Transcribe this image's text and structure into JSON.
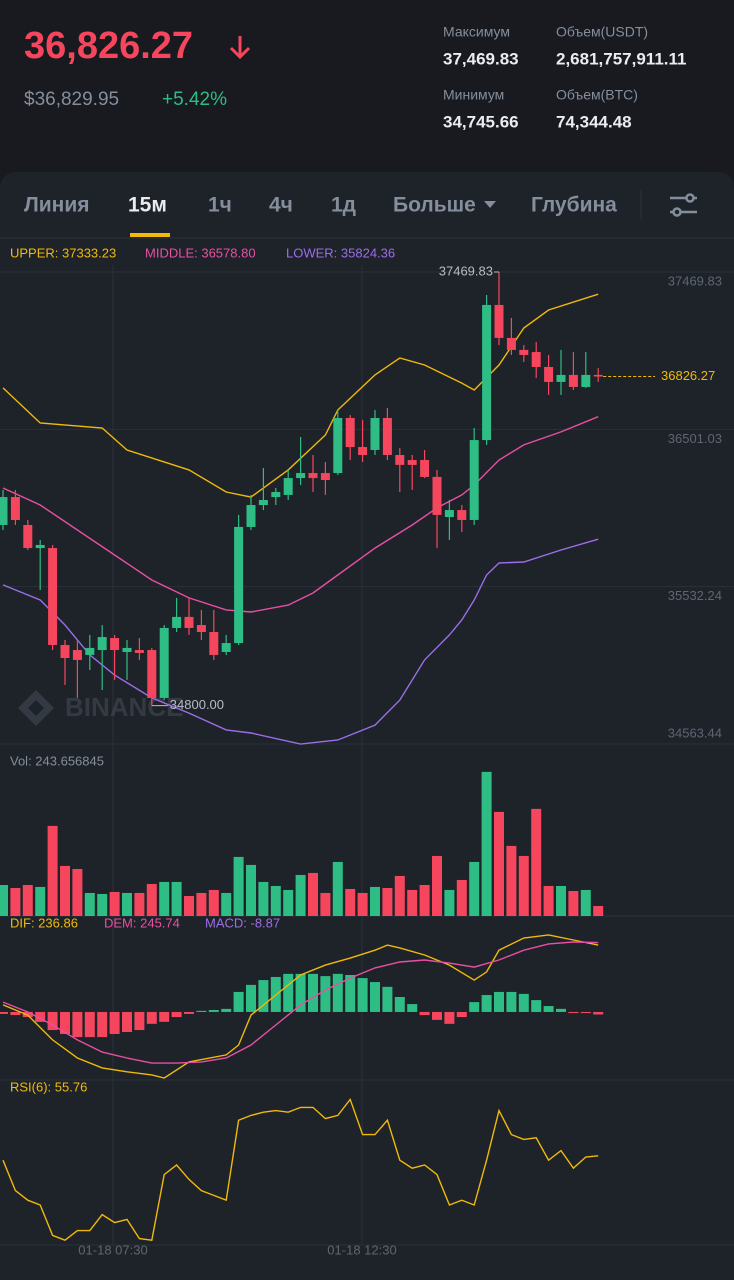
{
  "header": {
    "price": "36,826.27",
    "price_usd": "$36,829.95",
    "change": "+5.42%",
    "stats": [
      {
        "label": "Максимум",
        "value": "37,469.83"
      },
      {
        "label": "Объем(USDT)",
        "value": "2,681,757,911.11"
      },
      {
        "label": "Минимум",
        "value": "34,745.66"
      },
      {
        "label": "Объем(BTC)",
        "value": "74,344.48"
      }
    ]
  },
  "tabs": [
    "Линия",
    "15м",
    "1ч",
    "4ч",
    "1д",
    "Больше",
    "Глубина"
  ],
  "time_labels": [
    "01-18 07:30",
    "01-18 12:30"
  ],
  "chart_data": [
    {
      "type": "candlestick",
      "watermark": "BINANCE",
      "up_color": "#2ebd85",
      "down_color": "#f6465d",
      "ylim": [
        34563.44,
        37469.83
      ],
      "yticks": [
        37469.83,
        36501.03,
        35532.24,
        34563.44
      ],
      "grid": true,
      "candles": {
        "open": [
          35912,
          36084,
          35912,
          35770,
          35770,
          35173,
          35142,
          35112,
          35142,
          35216,
          35130,
          35142,
          35142,
          34847,
          35278,
          35346,
          35296,
          35253,
          35130,
          35185,
          35900,
          36035,
          36084,
          36097,
          36201,
          36232,
          36232,
          36232,
          36571,
          36392,
          36374,
          36571,
          36343,
          36312,
          36312,
          36208,
          35961,
          36004,
          35943,
          36435,
          37267,
          37064,
          36990,
          36977,
          36885,
          36793,
          36836,
          36762,
          36836
        ],
        "high": [
          36128,
          36128,
          35943,
          35820,
          35789,
          35204,
          35204,
          35235,
          35296,
          35235,
          35204,
          35216,
          35155,
          35296,
          35463,
          35463,
          35389,
          35389,
          35235,
          35974,
          36097,
          36263,
          36140,
          36251,
          36454,
          36343,
          36300,
          36620,
          36589,
          36559,
          36620,
          36633,
          36386,
          36343,
          36374,
          36251,
          36066,
          36035,
          36509,
          37328,
          37469.83,
          37187,
          37020,
          37039,
          36959,
          36990,
          36977,
          36977,
          36879
        ],
        "low": [
          35881,
          35912,
          35758,
          35512,
          35142,
          34927,
          34847,
          35019,
          34896,
          34958,
          34958,
          35081,
          34800,
          34834,
          35253,
          35235,
          35204,
          35081,
          35112,
          35173,
          35881,
          36004,
          36035,
          36066,
          36158,
          36115,
          36097,
          36220,
          36312,
          36300,
          36343,
          36312,
          36115,
          36128,
          36201,
          35770,
          35820,
          35869,
          35912,
          36405,
          37020,
          36959,
          36916,
          36817,
          36713,
          36713,
          36743,
          36756,
          36793
        ],
        "close": [
          36084,
          35943,
          35770,
          35789,
          35173,
          35093,
          35081,
          35155,
          35222,
          35142,
          35155,
          35124,
          34847,
          35278,
          35346,
          35278,
          35253,
          35112,
          35185,
          35900,
          36035,
          36066,
          36115,
          36201,
          36232,
          36201,
          36189,
          36571,
          36392,
          36343,
          36571,
          36343,
          36282,
          36282,
          36208,
          35974,
          36004,
          35943,
          36435,
          37267,
          37064,
          36990,
          36959,
          36885,
          36793,
          36836,
          36762,
          36836,
          36826.27
        ]
      },
      "bands": [
        {
          "label": "UPPER: 37333.23",
          "color": "#f0b90b",
          "x": [
            0,
            3,
            8,
            10,
            15,
            18,
            20,
            23,
            26,
            27,
            30,
            32,
            34,
            37,
            38,
            40,
            42,
            44,
            48
          ],
          "values": [
            36756,
            36540,
            36509,
            36374,
            36251,
            36115,
            36084,
            36251,
            36466,
            36620,
            36836,
            36940,
            36897,
            36786,
            36743,
            36897,
            37125,
            37236,
            37333.23
          ]
        },
        {
          "label": "MIDDLE: 36578.80",
          "color": "#e84fa3",
          "x": [
            0,
            3,
            6,
            9,
            12,
            15,
            18,
            20,
            23,
            25,
            27,
            30,
            33,
            35,
            37,
            38,
            40,
            42,
            45,
            48
          ],
          "values": [
            36140,
            36035,
            35881,
            35727,
            35573,
            35463,
            35389,
            35376,
            35419,
            35493,
            35604,
            35770,
            35912,
            36017,
            36097,
            36158,
            36312,
            36405,
            36485,
            36578.8
          ]
        },
        {
          "label": "LOWER: 35824.36",
          "color": "#9b6ee8",
          "x": [
            0,
            3,
            5,
            7,
            9,
            12,
            15,
            18,
            20,
            24,
            27,
            30,
            32,
            34,
            36,
            37,
            38,
            39,
            40,
            42,
            45,
            48
          ],
          "values": [
            35543,
            35450,
            35296,
            35112,
            34988,
            34847,
            34754,
            34650,
            34631,
            34563,
            34588,
            34680,
            34834,
            35081,
            35235,
            35327,
            35450,
            35604,
            35678,
            35684,
            35758,
            35824.36
          ]
        }
      ],
      "max_label": 37469.83,
      "min_label": {
        "value": 34800,
        "label": "34800.00"
      },
      "last_price": 36826.27
    },
    {
      "type": "bar",
      "label": "Vol: 243.656845",
      "ylim": [
        0,
        3700
      ],
      "values": [
        755,
        682,
        755,
        707,
        2193,
        1219,
        1145,
        561,
        536,
        585,
        561,
        561,
        780,
        829,
        829,
        487,
        561,
        634,
        561,
        1438,
        1243,
        829,
        731,
        634,
        999,
        1048,
        561,
        1316,
        658,
        561,
        707,
        682,
        975,
        634,
        755,
        1462,
        634,
        877,
        1316,
        3509,
        2534,
        1706,
        1462,
        2608,
        731,
        731,
        609,
        634,
        243.656845
      ]
    },
    {
      "type": "macd",
      "ylim": [
        -241,
        340
      ],
      "series": [
        {
          "label": "DIF: 236.86",
          "color": "#f0b90b",
          "x": [
            0,
            2,
            4,
            6,
            8,
            10,
            12,
            13,
            15,
            18,
            19,
            20,
            22,
            24,
            26,
            28,
            30,
            31,
            32,
            34,
            36,
            38,
            39,
            40,
            42,
            44,
            46,
            48
          ],
          "values": [
            25,
            -11,
            -99,
            -163,
            -198,
            -212,
            -223,
            -234,
            -177,
            -152,
            -117,
            -11,
            60,
            131,
            166,
            191,
            219,
            237,
            227,
            202,
            166,
            113,
            142,
            219,
            262,
            273,
            255,
            236.86
          ]
        },
        {
          "label": "DEM: 245.74",
          "color": "#e84fa3",
          "x": [
            0,
            2,
            4,
            6,
            8,
            10,
            12,
            14,
            16,
            18,
            20,
            22,
            24,
            26,
            28,
            30,
            32,
            34,
            36,
            38,
            40,
            42,
            44,
            46,
            48
          ],
          "values": [
            35,
            0,
            -46,
            -99,
            -142,
            -163,
            -181,
            -181,
            -177,
            -163,
            -117,
            -46,
            25,
            78,
            120,
            156,
            177,
            184,
            173,
            159,
            184,
            219,
            241,
            248,
            245.74
          ]
        }
      ],
      "histogram": {
        "label": "MACD: -8.87",
        "color": "#9b6ee8",
        "values": [
          -7,
          -11,
          -18,
          -35,
          -64,
          -78,
          -89,
          -89,
          -89,
          -78,
          -71,
          -64,
          -42,
          -35,
          -18,
          -7,
          4,
          7,
          11,
          71,
          96,
          113,
          124,
          135,
          135,
          135,
          127,
          135,
          131,
          120,
          106,
          89,
          53,
          28,
          -11,
          -28,
          -42,
          -18,
          35,
          60,
          71,
          71,
          64,
          42,
          21,
          11,
          -4,
          -4,
          -8.87
        ]
      }
    },
    {
      "type": "line",
      "ylim": [
        0,
        100
      ],
      "series": [
        {
          "label": "RSI(6): 55.76",
          "color": "#f0b90b",
          "values": [
            53,
            34,
            28,
            25,
            6,
            3,
            9,
            9,
            19,
            14,
            16,
            4,
            3,
            44,
            50,
            41,
            34,
            31,
            28,
            78,
            81,
            83,
            84,
            83,
            86,
            86,
            79,
            81,
            91,
            69,
            69,
            78,
            53,
            48,
            50,
            44,
            25,
            28,
            25,
            53,
            84,
            69,
            66,
            67,
            53,
            59,
            48,
            55,
            55.76
          ]
        }
      ]
    }
  ]
}
